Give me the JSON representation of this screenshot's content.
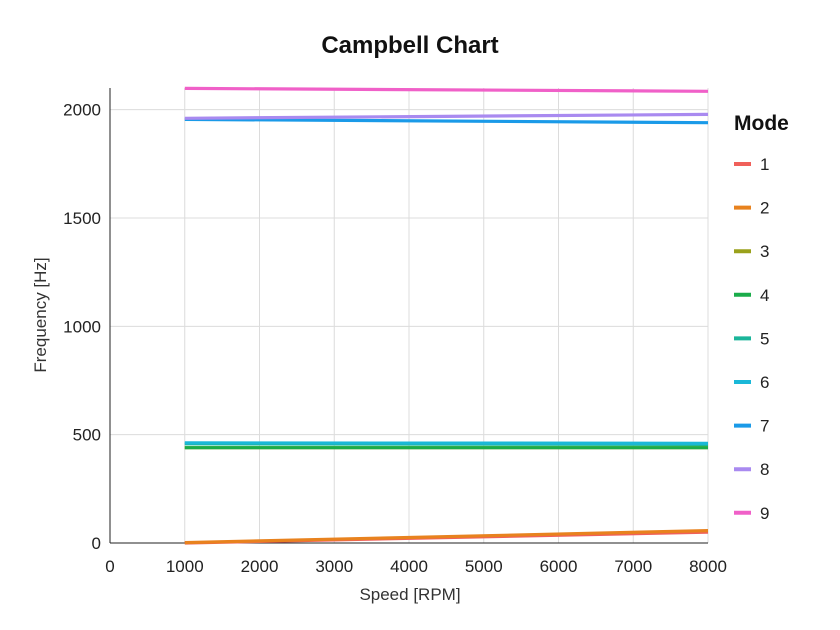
{
  "chart_data": {
    "type": "line",
    "title": "Campbell Chart",
    "xlabel": "Speed [RPM]",
    "ylabel": "Frequency [Hz]",
    "xlim": [
      0,
      8000
    ],
    "ylim": [
      0,
      2100
    ],
    "xticks": [
      0,
      1000,
      2000,
      3000,
      4000,
      5000,
      6000,
      7000,
      8000
    ],
    "yticks": [
      0,
      500,
      1000,
      1500,
      2000
    ],
    "grid": true,
    "legend_title": "Mode",
    "legend_position": "right",
    "x": [
      1000,
      8000
    ],
    "series": [
      {
        "name": "1",
        "color": "#f0605a",
        "values": [
          0,
          50
        ]
      },
      {
        "name": "2",
        "color": "#e8821e",
        "values": [
          2,
          57
        ]
      },
      {
        "name": "3",
        "color": "#9aa11b",
        "values": [
          440,
          440
        ]
      },
      {
        "name": "4",
        "color": "#1aac4a",
        "values": [
          440,
          440
        ]
      },
      {
        "name": "5",
        "color": "#1ab59a",
        "values": [
          458,
          455
        ]
      },
      {
        "name": "6",
        "color": "#1ab8d8",
        "values": [
          462,
          460
        ]
      },
      {
        "name": "7",
        "color": "#1a9ae8",
        "values": [
          1955,
          1940
        ]
      },
      {
        "name": "8",
        "color": "#a98af0",
        "values": [
          1960,
          1978
        ]
      },
      {
        "name": "9",
        "color": "#f060c8",
        "values": [
          2098,
          2085
        ]
      }
    ]
  }
}
